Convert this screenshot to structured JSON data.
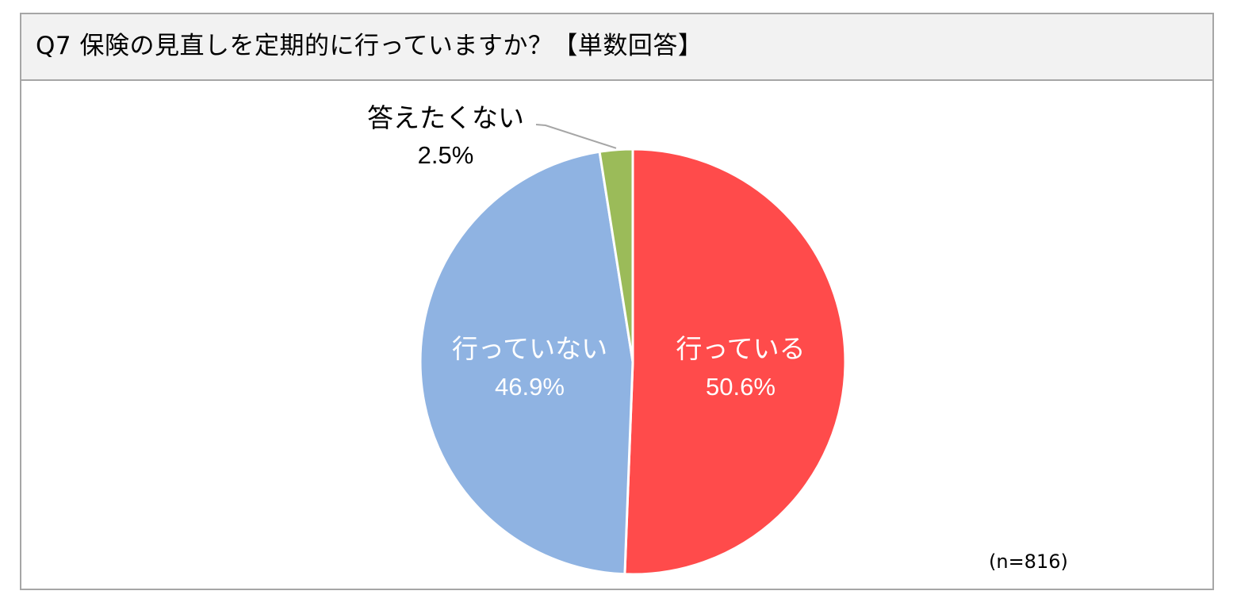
{
  "title": "Q7 保険の見直しを定期的に行っていますか？【単数回答】",
  "sample_note": "(n=816)",
  "chart_data": {
    "type": "pie",
    "title": "Q7 保険の見直しを定期的に行っていますか？【単数回答】",
    "slices": [
      {
        "label": "行っている",
        "value": 50.6,
        "value_label": "50.6%",
        "color": "#ff4b4b",
        "label_placement": "inside",
        "label_color": "#ffffff"
      },
      {
        "label": "行っていない",
        "value": 46.9,
        "value_label": "46.9%",
        "color": "#8fb3e2",
        "label_placement": "inside",
        "label_color": "#ffffff"
      },
      {
        "label": "答えたくない",
        "value": 2.5,
        "value_label": "2.5%",
        "color": "#9bbb59",
        "label_placement": "outside",
        "label_color": "#000000"
      }
    ],
    "start_angle": "12 o'clock",
    "direction": "clockwise",
    "legend": "none"
  }
}
